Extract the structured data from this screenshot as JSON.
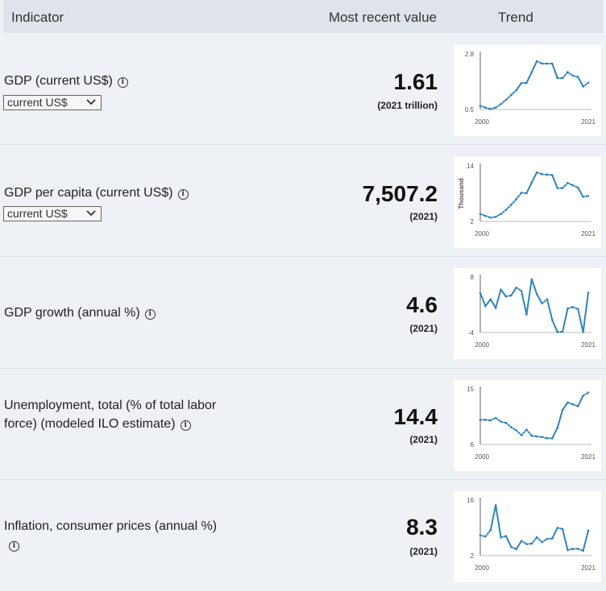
{
  "header": {
    "indicator": "Indicator",
    "most_recent": "Most recent value",
    "trend": "Trend"
  },
  "rows": [
    {
      "name": "GDP (current US$)",
      "select": "current US$",
      "value": "1.61",
      "sub": "(2021 trillion)",
      "chart": {
        "ymax": "2.8",
        "ymin": "0.5",
        "ylabel": "",
        "xstart": "2000",
        "xend": "2021",
        "ylim": [
          0.5,
          2.8
        ],
        "values": [
          0.65,
          0.58,
          0.52,
          0.58,
          0.72,
          0.9,
          1.1,
          1.3,
          1.6,
          1.6,
          2.05,
          2.5,
          2.4,
          2.4,
          2.4,
          1.8,
          1.8,
          2.05,
          1.9,
          1.85,
          1.45,
          1.61
        ]
      }
    },
    {
      "name": "GDP per capita (current US$)",
      "select": "current US$",
      "value": "7,507.2",
      "sub": "(2021)",
      "chart": {
        "ymax": "14",
        "ymin": "2",
        "ylabel": "Thousand",
        "xstart": "2000",
        "xend": "2021",
        "ylim": [
          2,
          14
        ],
        "values": [
          3.6,
          3.2,
          2.8,
          3.0,
          3.6,
          4.5,
          5.6,
          6.8,
          8.2,
          8.1,
          10.4,
          12.6,
          12.2,
          12.1,
          12.0,
          9.2,
          9.2,
          10.3,
          9.8,
          9.3,
          7.3,
          7.5
        ]
      }
    },
    {
      "name": "GDP growth (annual %)",
      "select": "",
      "value": "4.6",
      "sub": "(2021)",
      "chart": {
        "ymax": "8",
        "ymin": "-4",
        "ylabel": "",
        "xstart": "2000",
        "xend": "2021",
        "ylim": [
          -4,
          8
        ],
        "values": [
          4.5,
          1.7,
          3.2,
          1.3,
          5.3,
          3.8,
          4.0,
          5.7,
          5.0,
          -0.1,
          7.5,
          4.3,
          2.3,
          3.2,
          -1.3,
          -3.9,
          -3.8,
          1.2,
          1.5,
          1.1,
          -3.9,
          4.6
        ]
      }
    },
    {
      "name": "Unemployment, total (% of total labor force) (modeled ILO estimate)",
      "select": "",
      "value": "14.4",
      "sub": "(2021)",
      "chart": {
        "ymax": "15",
        "ymin": "6",
        "ylabel": "",
        "xstart": "2000",
        "xend": "2021",
        "ylim": [
          6,
          15
        ],
        "values": [
          10.0,
          10.0,
          9.9,
          10.3,
          9.7,
          9.5,
          8.8,
          8.3,
          7.5,
          8.4,
          7.4,
          7.3,
          7.2,
          7.0,
          7.0,
          8.7,
          11.6,
          12.8,
          12.5,
          12.2,
          13.9,
          14.4
        ]
      }
    },
    {
      "name": "Inflation, consumer prices (annual %)",
      "select": "",
      "value": "8.3",
      "sub": "(2021)",
      "chart": {
        "ymax": "16",
        "ymin": "2",
        "ylabel": "",
        "xstart": "2000",
        "xend": "2021",
        "ylim": [
          2,
          16
        ],
        "values": [
          7.1,
          6.8,
          8.4,
          14.7,
          6.6,
          6.9,
          4.2,
          3.6,
          5.7,
          4.9,
          5.0,
          6.6,
          5.4,
          6.2,
          6.3,
          9.0,
          8.7,
          3.4,
          3.7,
          3.7,
          3.2,
          8.3
        ]
      }
    }
  ]
}
